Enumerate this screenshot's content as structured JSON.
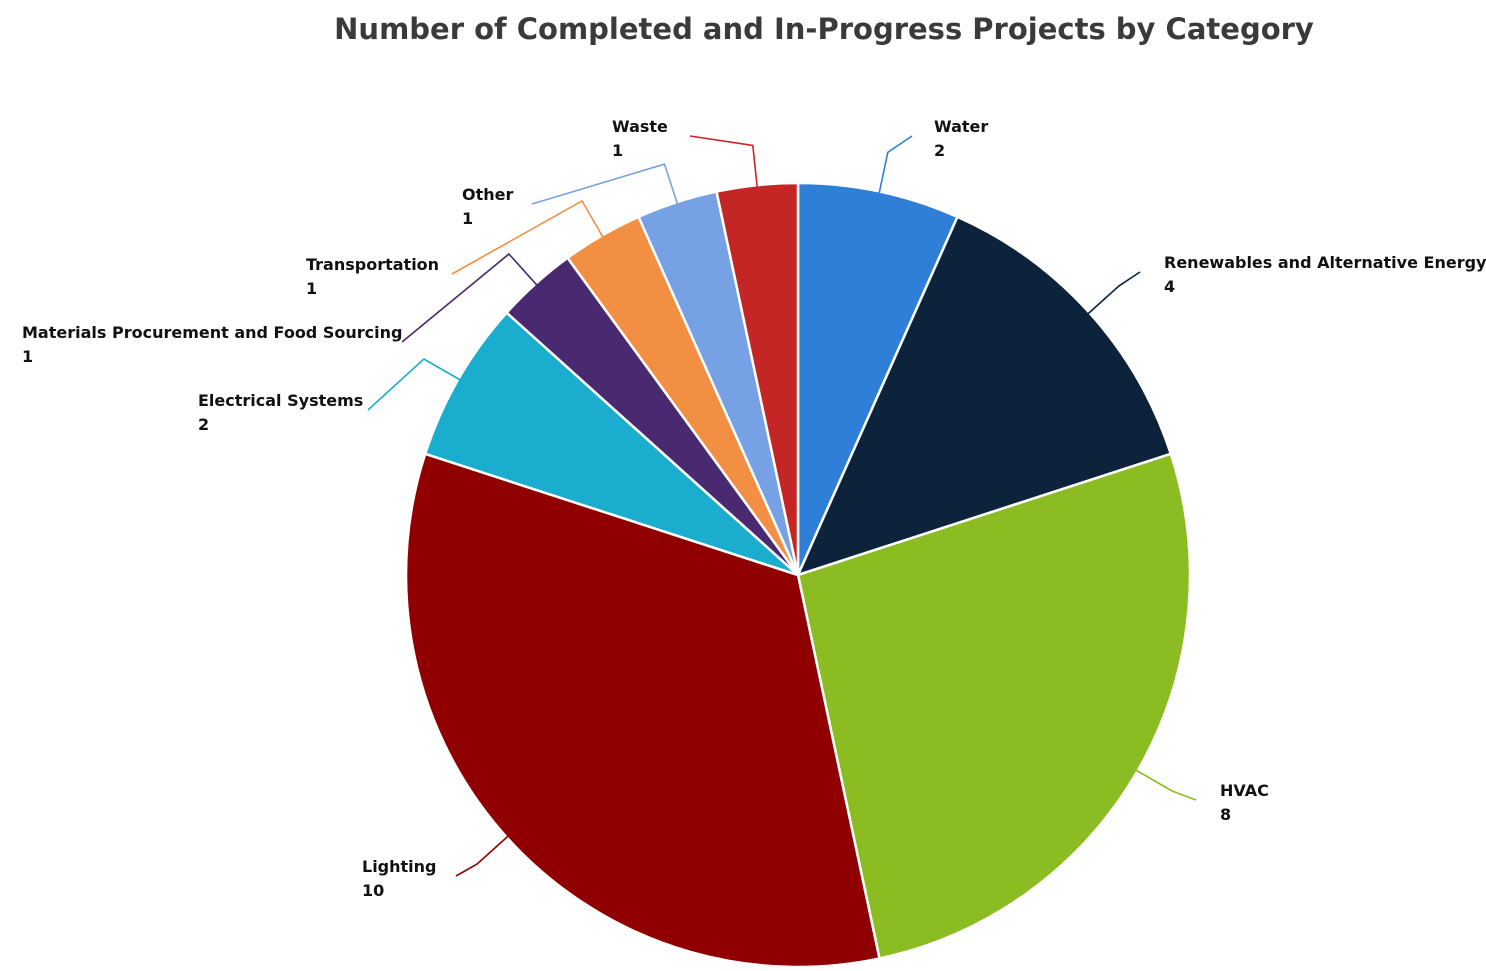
{
  "chart_data": {
    "type": "pie",
    "title": "Number of Completed and In-Progress Projects by Category",
    "start_angle_deg": 0,
    "direction": "clockwise",
    "slices": [
      {
        "label": "Water",
        "value": 2,
        "color": "#2f7ed8"
      },
      {
        "label": "Renewables and Alternative Energy",
        "value": 4,
        "color": "#0d223b"
      },
      {
        "label": "HVAC",
        "value": 8,
        "color": "#8bbc21"
      },
      {
        "label": "Lighting",
        "value": 10,
        "color": "#910000"
      },
      {
        "label": "Electrical Systems",
        "value": 2,
        "color": "#1aadce"
      },
      {
        "label": "Materials Procurement and Food Sourcing",
        "value": 1,
        "color": "#492970"
      },
      {
        "label": "Transportation",
        "value": 1,
        "color": "#f28f43"
      },
      {
        "label": "Other",
        "value": 1,
        "color": "#77a1e5"
      },
      {
        "label": "Waste",
        "value": 1,
        "color": "#c42525"
      }
    ]
  }
}
